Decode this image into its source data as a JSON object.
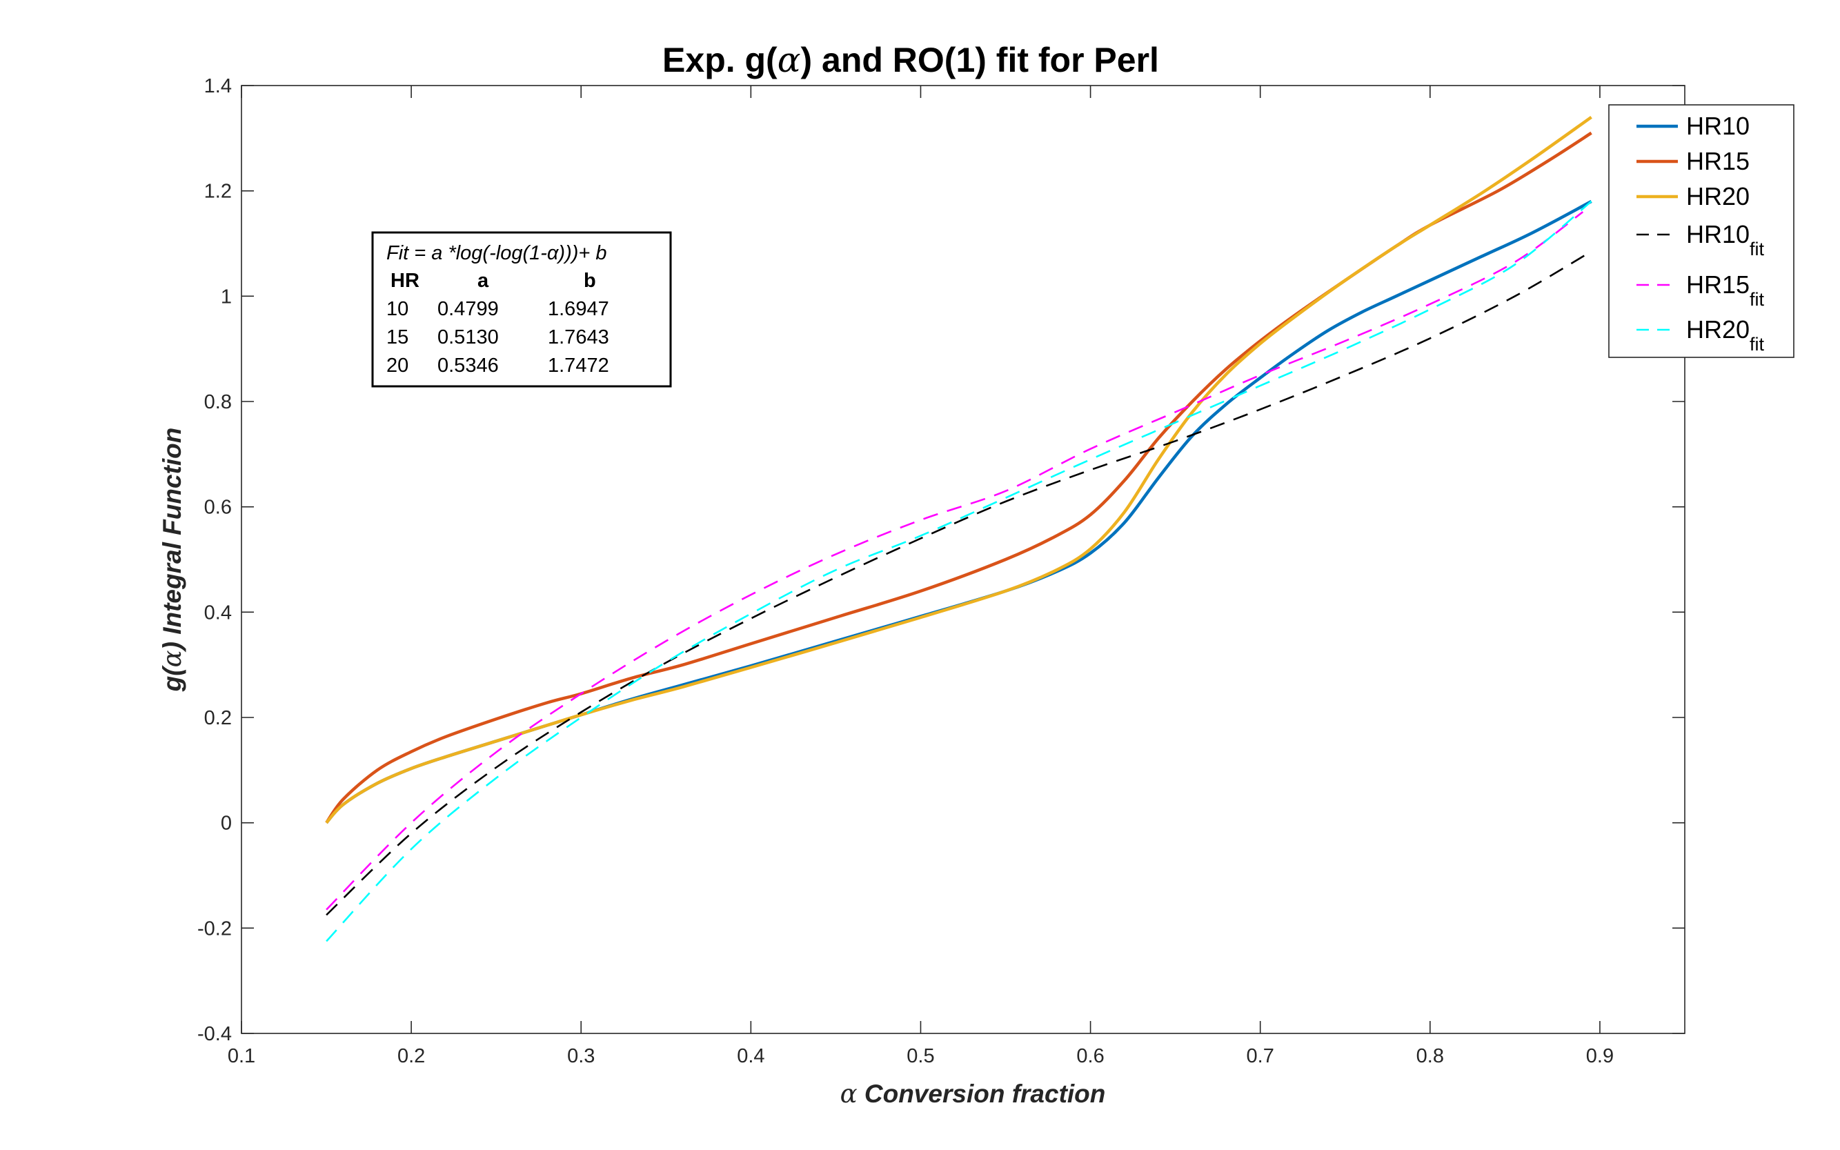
{
  "chart_data": {
    "type": "line",
    "title": "Exp. g(α) and RO(1) fit for Perl",
    "xlabel": "α  Conversion fraction",
    "ylabel": "g(α)  Integral Function",
    "xlim": [
      0.1,
      0.95
    ],
    "ylim": [
      -0.4,
      1.4
    ],
    "xticks": [
      "0.1",
      "0.2",
      "0.3",
      "0.4",
      "0.5",
      "0.6",
      "0.7",
      "0.8",
      "0.9"
    ],
    "yticks": [
      "-0.4",
      "-0.2",
      "0",
      "0.2",
      "0.4",
      "0.6",
      "0.8",
      "1",
      "1.2",
      "1.4"
    ],
    "grid": false,
    "legend_position": "outside-top-right",
    "series": [
      {
        "name": "HR10",
        "color": "#0072BD",
        "dash": "solid",
        "x": [
          0.15,
          0.16,
          0.18,
          0.2,
          0.22,
          0.25,
          0.28,
          0.3,
          0.33,
          0.36,
          0.4,
          0.45,
          0.5,
          0.55,
          0.58,
          0.6,
          0.62,
          0.64,
          0.66,
          0.68,
          0.7,
          0.72,
          0.74,
          0.76,
          0.78,
          0.8,
          0.83,
          0.86,
          0.895
        ],
        "y": [
          0.0,
          0.035,
          0.075,
          0.103,
          0.125,
          0.155,
          0.185,
          0.205,
          0.235,
          0.262,
          0.298,
          0.345,
          0.392,
          0.44,
          0.477,
          0.512,
          0.57,
          0.655,
          0.735,
          0.795,
          0.845,
          0.892,
          0.935,
          0.97,
          1.0,
          1.03,
          1.075,
          1.12,
          1.18
        ]
      },
      {
        "name": "HR15",
        "color": "#D95319",
        "dash": "solid",
        "x": [
          0.15,
          0.16,
          0.18,
          0.2,
          0.22,
          0.25,
          0.28,
          0.3,
          0.33,
          0.36,
          0.4,
          0.45,
          0.5,
          0.55,
          0.58,
          0.6,
          0.62,
          0.64,
          0.66,
          0.68,
          0.7,
          0.72,
          0.75,
          0.78,
          0.8,
          0.84,
          0.87,
          0.895
        ],
        "y": [
          0.0,
          0.045,
          0.1,
          0.135,
          0.163,
          0.197,
          0.228,
          0.245,
          0.275,
          0.3,
          0.34,
          0.39,
          0.44,
          0.5,
          0.545,
          0.585,
          0.65,
          0.73,
          0.8,
          0.862,
          0.915,
          0.963,
          1.03,
          1.095,
          1.135,
          1.2,
          1.258,
          1.31
        ]
      },
      {
        "name": "HR20",
        "color": "#EDB120",
        "dash": "solid",
        "x": [
          0.15,
          0.16,
          0.18,
          0.2,
          0.22,
          0.25,
          0.28,
          0.3,
          0.33,
          0.36,
          0.4,
          0.45,
          0.5,
          0.55,
          0.58,
          0.6,
          0.62,
          0.64,
          0.66,
          0.68,
          0.7,
          0.72,
          0.75,
          0.78,
          0.8,
          0.83,
          0.86,
          0.895
        ],
        "y": [
          0.0,
          0.035,
          0.075,
          0.103,
          0.125,
          0.155,
          0.185,
          0.205,
          0.233,
          0.258,
          0.295,
          0.342,
          0.39,
          0.44,
          0.48,
          0.52,
          0.59,
          0.69,
          0.78,
          0.852,
          0.91,
          0.96,
          1.03,
          1.095,
          1.135,
          1.195,
          1.26,
          1.34
        ]
      },
      {
        "name": "HR10fit",
        "color": "#000000",
        "dash": "dashed",
        "x": [
          0.15,
          0.2,
          0.25,
          0.3,
          0.35,
          0.4,
          0.45,
          0.5,
          0.55,
          0.6,
          0.65,
          0.7,
          0.75,
          0.8,
          0.85,
          0.895
        ],
        "y": [
          -0.175,
          -0.02,
          0.105,
          0.21,
          0.304,
          0.388,
          0.466,
          0.54,
          0.61,
          0.67,
          0.725,
          0.785,
          0.85,
          0.92,
          1.0,
          1.085
        ]
      },
      {
        "name": "HR15fit",
        "color": "#FF00FF",
        "dash": "dashed",
        "x": [
          0.15,
          0.2,
          0.25,
          0.3,
          0.35,
          0.4,
          0.45,
          0.5,
          0.55,
          0.6,
          0.65,
          0.7,
          0.75,
          0.8,
          0.85,
          0.89
        ],
        "y": [
          -0.165,
          0.0,
          0.134,
          0.245,
          0.345,
          0.433,
          0.51,
          0.575,
          0.63,
          0.71,
          0.78,
          0.85,
          0.915,
          0.985,
          1.065,
          1.16
        ]
      },
      {
        "name": "HR20fit",
        "color": "#00FFFF",
        "dash": "dashed",
        "x": [
          0.15,
          0.2,
          0.25,
          0.3,
          0.35,
          0.4,
          0.45,
          0.5,
          0.55,
          0.6,
          0.65,
          0.7,
          0.75,
          0.8,
          0.85,
          0.895
        ],
        "y": [
          -0.225,
          -0.05,
          0.085,
          0.2,
          0.305,
          0.397,
          0.48,
          0.545,
          0.617,
          0.69,
          0.76,
          0.83,
          0.9,
          0.975,
          1.06,
          1.18
        ]
      }
    ],
    "legend": {
      "entries": [
        {
          "label": "HR10",
          "sub": ""
        },
        {
          "label": "HR15",
          "sub": ""
        },
        {
          "label": "HR20",
          "sub": ""
        },
        {
          "label": "HR10",
          "sub": "fit"
        },
        {
          "label": "HR15",
          "sub": "fit"
        },
        {
          "label": "HR20",
          "sub": "fit"
        }
      ]
    },
    "annotation": {
      "formula": "Fit = a *log(-log(1-α)))+ b",
      "headers": [
        "HR",
        "a",
        "b"
      ],
      "rows": [
        [
          "10",
          "0.4799",
          "1.6947"
        ],
        [
          "15",
          "0.5130",
          "1.7643"
        ],
        [
          "20",
          "0.5346",
          "1.7472"
        ]
      ]
    }
  }
}
